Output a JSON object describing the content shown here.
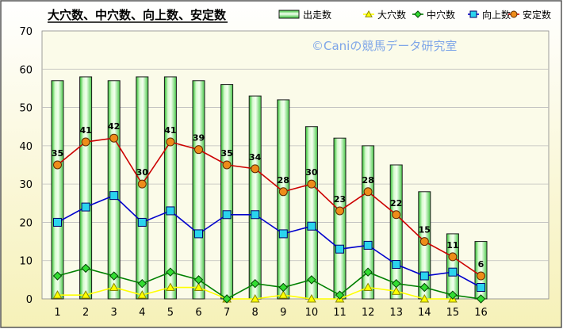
{
  "chart_data": {
    "type": "bar",
    "title": "大穴数、中穴数、向上数、安定数",
    "watermark": "©Caniの競馬データ研究室",
    "categories": [
      "1",
      "2",
      "3",
      "4",
      "5",
      "6",
      "7",
      "8",
      "9",
      "10",
      "11",
      "12",
      "13",
      "14",
      "15",
      "16"
    ],
    "ylim": [
      0,
      70
    ],
    "yticks": [
      "0",
      "10",
      "20",
      "30",
      "40",
      "50",
      "60",
      "70"
    ],
    "grid": true,
    "legend_position": "top-right",
    "series": [
      {
        "name": "出走数",
        "kind": "bar",
        "color": "#33cc33",
        "values": [
          57,
          58,
          57,
          58,
          58,
          57,
          56,
          53,
          52,
          45,
          42,
          40,
          35,
          28,
          17,
          15
        ]
      },
      {
        "name": "大穴数",
        "kind": "line",
        "marker": "triangle",
        "color": "#ffff00",
        "values": [
          1,
          1,
          3,
          1,
          3,
          3,
          0,
          0,
          1,
          0,
          0,
          3,
          2,
          0,
          0,
          null
        ]
      },
      {
        "name": "中穴数",
        "kind": "line",
        "marker": "diamond",
        "color": "#008000",
        "values": [
          6,
          8,
          6,
          4,
          7,
          5,
          0,
          4,
          3,
          5,
          1,
          7,
          4,
          3,
          1,
          0
        ]
      },
      {
        "name": "向上数",
        "kind": "line",
        "marker": "square",
        "color": "#0000cc",
        "values": [
          20,
          24,
          27,
          20,
          23,
          17,
          22,
          22,
          17,
          19,
          13,
          14,
          9,
          6,
          7,
          3
        ]
      },
      {
        "name": "安定数",
        "kind": "line",
        "marker": "circle",
        "color": "#cc0000",
        "values": [
          35,
          41,
          42,
          30,
          41,
          39,
          35,
          34,
          28,
          30,
          23,
          28,
          22,
          15,
          11,
          6
        ]
      }
    ],
    "data_labels": {
      "series": "安定数",
      "values": [
        "35",
        "41",
        "42",
        "30",
        "41",
        "39",
        "35",
        "34",
        "28",
        "30",
        "23",
        "28",
        "22",
        "15",
        "11",
        "6"
      ]
    }
  }
}
